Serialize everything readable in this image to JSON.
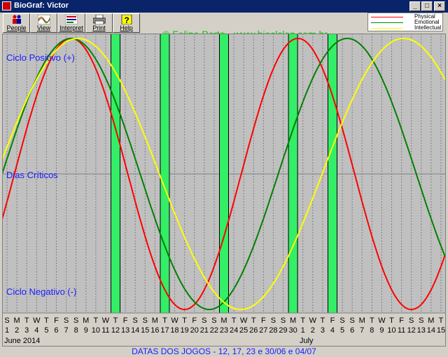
{
  "window": {
    "title": "BioGraf: Victor"
  },
  "toolbar": {
    "buttons": [
      {
        "label": "People",
        "icon": "people-icon"
      },
      {
        "label": "View",
        "icon": "view-icon"
      },
      {
        "label": "Interpret",
        "icon": "interpret-icon"
      },
      {
        "label": "Print",
        "icon": "print-icon"
      },
      {
        "label": "Help",
        "icon": "help-icon"
      }
    ],
    "credit": "© Felipe Porto - www.bioclclos.com.br"
  },
  "legend": [
    {
      "name": "Physical",
      "color": "#ff0000"
    },
    {
      "name": "Emotional",
      "color": "#008000"
    },
    {
      "name": "Intellectual",
      "color": "#ffff00"
    }
  ],
  "chart": {
    "positive_label": "Ciclo Positivo (+)",
    "critical_label": "Dias Críticos",
    "negative_label": "Ciclo Negativo (-)",
    "month_left": "June 2014",
    "month_right": "July",
    "day_letters": [
      "S",
      "M",
      "T",
      "W",
      "T",
      "F",
      "S",
      "S",
      "M",
      "T",
      "W",
      "T",
      "F",
      "S",
      "S",
      "M",
      "T",
      "W",
      "T",
      "F",
      "S",
      "S",
      "M",
      "T",
      "W",
      "T",
      "F",
      "S",
      "S",
      "M",
      "T",
      "W",
      "T",
      "F",
      "S",
      "S",
      "M",
      "T",
      "W",
      "T",
      "F",
      "S",
      "S",
      "M",
      "T"
    ],
    "day_numbers": [
      "1",
      "2",
      "3",
      "4",
      "5",
      "6",
      "7",
      "8",
      "9",
      "10",
      "11",
      "12",
      "13",
      "14",
      "15",
      "16",
      "17",
      "18",
      "19",
      "20",
      "21",
      "22",
      "23",
      "24",
      "25",
      "26",
      "27",
      "28",
      "29",
      "30",
      "1",
      "2",
      "3",
      "4",
      "5",
      "6",
      "7",
      "8",
      "9",
      "10",
      "11",
      "12",
      "13",
      "14",
      "15"
    ],
    "highlight_days": [
      11,
      16,
      22,
      29,
      33
    ],
    "colors": {
      "physical": "#ff0000",
      "emotional": "#008000",
      "intellectual": "#ffff00",
      "highlight": "#33ee66"
    }
  },
  "chart_data": {
    "type": "line",
    "x_label_start": "June 2014",
    "series": [
      {
        "name": "Physical",
        "period": 23,
        "peak_index": 6.5
      },
      {
        "name": "Emotional",
        "period": 28,
        "peak_index": 6.5
      },
      {
        "name": "Intellectual",
        "period": 33,
        "peak_index": 7.2
      }
    ],
    "ylim": [
      -1,
      1
    ],
    "highlighted_dates": [
      "12",
      "17",
      "23",
      "30",
      "4"
    ]
  },
  "footer": {
    "text": "DATAS DOS JOGOS - 12, 17, 23 e 30/06 e 04/07"
  }
}
